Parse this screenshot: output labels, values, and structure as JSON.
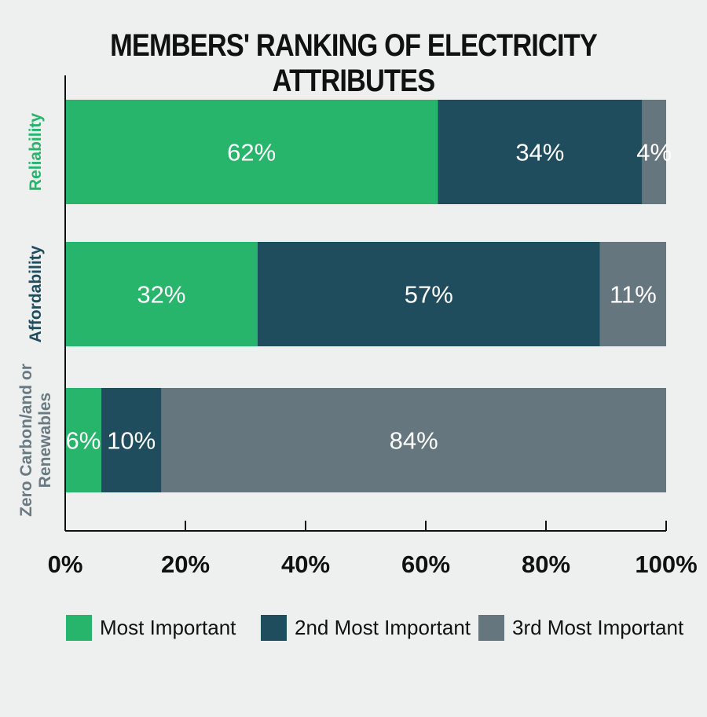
{
  "chart_data": {
    "type": "bar",
    "orientation": "horizontal",
    "stacked": true,
    "title": "MEMBERS' RANKING OF ELECTRICITY ATTRIBUTES",
    "categories": [
      {
        "lines": [
          "Reliability"
        ],
        "color": "#27b46b"
      },
      {
        "lines": [
          "Affordability"
        ],
        "color": "#1f4d5e"
      },
      {
        "lines": [
          "Zero Carbon/and or",
          "Renewables"
        ],
        "color": "#6a7a83"
      }
    ],
    "series": [
      {
        "name": "Most Important",
        "color": "#27b46b",
        "values": [
          62,
          32,
          6
        ],
        "labels": [
          "62%",
          "32%",
          "6%"
        ]
      },
      {
        "name": "2nd Most Important",
        "color": "#1f4d5e",
        "values": [
          34,
          57,
          10
        ],
        "labels": [
          "34%",
          "57%",
          "10%"
        ]
      },
      {
        "name": "3rd Most Important",
        "color": "#66767f",
        "values": [
          4,
          11,
          84
        ],
        "labels": [
          "4%",
          "11%",
          "84%"
        ]
      }
    ],
    "xlim": [
      0,
      100
    ],
    "ticks": [
      0,
      20,
      40,
      60,
      80,
      100
    ],
    "tick_labels": [
      "0%",
      "20%",
      "40%",
      "60%",
      "80%",
      "100%"
    ],
    "grid": false,
    "legend_position": "bottom"
  }
}
